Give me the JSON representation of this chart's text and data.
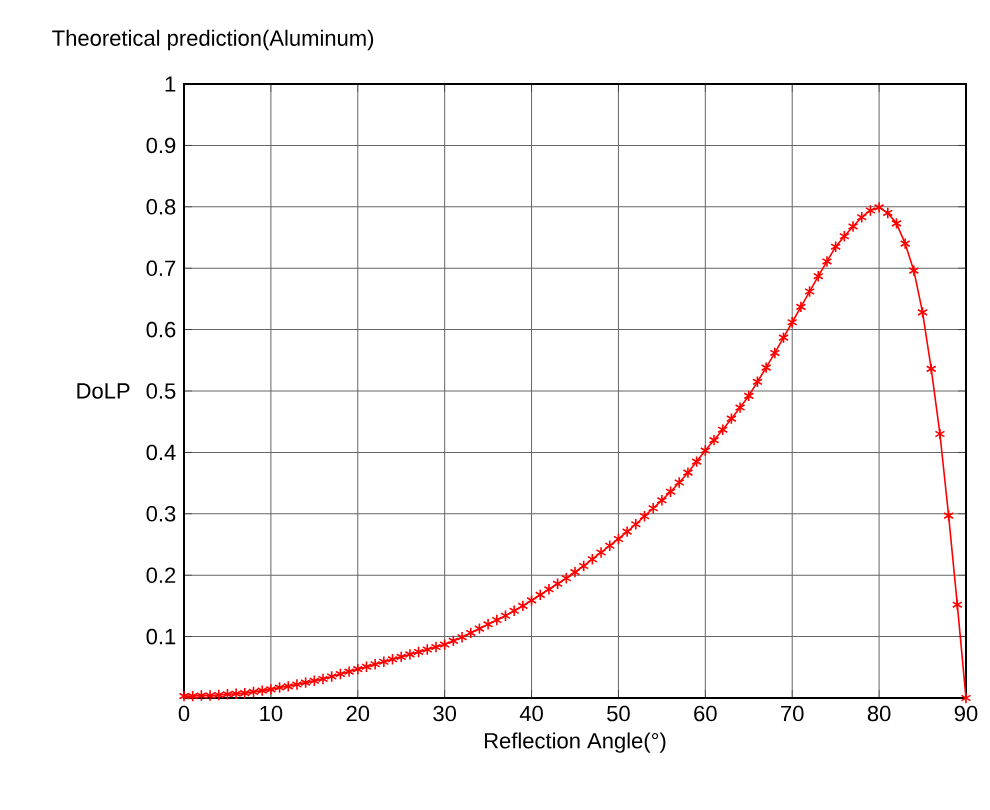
{
  "chart_data": {
    "type": "line",
    "title": "Theoretical prediction(Aluminum)",
    "xlabel": "Reflection Angle(°)",
    "ylabel": "DoLP",
    "x": [
      0,
      1,
      2,
      3,
      4,
      5,
      6,
      7,
      8,
      9,
      10,
      11,
      12,
      13,
      14,
      15,
      16,
      17,
      18,
      19,
      20,
      21,
      22,
      23,
      24,
      25,
      26,
      27,
      28,
      29,
      30,
      31,
      32,
      33,
      34,
      35,
      36,
      37,
      38,
      39,
      40,
      41,
      42,
      43,
      44,
      45,
      46,
      47,
      48,
      49,
      50,
      51,
      52,
      53,
      54,
      55,
      56,
      57,
      58,
      59,
      60,
      61,
      62,
      63,
      64,
      65,
      66,
      67,
      68,
      69,
      70,
      71,
      72,
      73,
      74,
      75,
      76,
      77,
      78,
      79,
      80,
      81,
      82,
      83,
      84,
      85,
      86,
      87,
      88,
      89,
      90
    ],
    "series": [
      {
        "color": "#ff0000",
        "values": [
          0.003,
          0.003,
          0.004,
          0.004,
          0.005,
          0.006,
          0.007,
          0.008,
          0.01,
          0.012,
          0.014,
          0.017,
          0.019,
          0.022,
          0.025,
          0.028,
          0.031,
          0.035,
          0.039,
          0.043,
          0.047,
          0.051,
          0.055,
          0.059,
          0.063,
          0.067,
          0.071,
          0.075,
          0.079,
          0.083,
          0.087,
          0.093,
          0.099,
          0.106,
          0.113,
          0.12,
          0.127,
          0.134,
          0.142,
          0.15,
          0.159,
          0.168,
          0.177,
          0.186,
          0.195,
          0.205,
          0.215,
          0.226,
          0.237,
          0.248,
          0.259,
          0.271,
          0.283,
          0.296,
          0.309,
          0.322,
          0.336,
          0.351,
          0.367,
          0.385,
          0.403,
          0.42,
          0.437,
          0.455,
          0.473,
          0.492,
          0.515,
          0.538,
          0.562,
          0.587,
          0.612,
          0.637,
          0.662,
          0.687,
          0.711,
          0.735,
          0.752,
          0.768,
          0.783,
          0.794,
          0.799,
          0.79,
          0.773,
          0.74,
          0.696,
          0.628,
          0.536,
          0.43,
          0.297,
          0.152,
          0
        ]
      }
    ],
    "xlim": [
      0,
      90
    ],
    "ylim": [
      0,
      1
    ],
    "xticks": [
      0,
      10,
      20,
      30,
      40,
      50,
      60,
      70,
      80,
      90
    ],
    "yticks": [
      0.1,
      0.2,
      0.3,
      0.4,
      0.5,
      0.6,
      0.7,
      0.8,
      0.9,
      1
    ],
    "grid": true,
    "marker": "cross",
    "line_style": "solid"
  }
}
